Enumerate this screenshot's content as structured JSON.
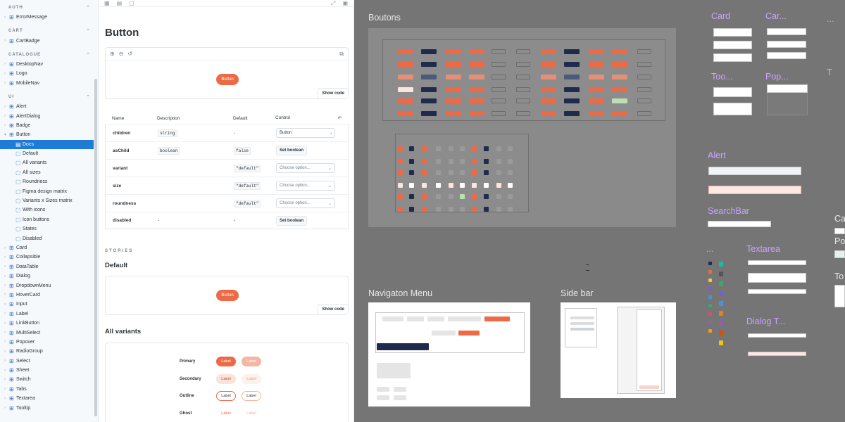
{
  "sidebar": {
    "groups": [
      {
        "title": "AUTH",
        "items": [
          {
            "label": "ErrorMessage"
          }
        ]
      },
      {
        "title": "CART",
        "items": [
          {
            "label": "CartBadge"
          }
        ]
      },
      {
        "title": "CATALOGUE",
        "items": [
          {
            "label": "DesktopNav"
          },
          {
            "label": "Logo"
          },
          {
            "label": "MobileNav"
          }
        ]
      },
      {
        "title": "UI",
        "items": [
          {
            "label": "Alert"
          },
          {
            "label": "AlertDialog"
          },
          {
            "label": "Badge"
          },
          {
            "label": "Button",
            "expanded": true
          },
          {
            "label": "Docs",
            "sub": true,
            "selected": true,
            "icon": "doc"
          },
          {
            "label": "Default",
            "sub": true
          },
          {
            "label": "All variants",
            "sub": true
          },
          {
            "label": "All sizes",
            "sub": true
          },
          {
            "label": "Roundness",
            "sub": true
          },
          {
            "label": "Figma design matrix",
            "sub": true
          },
          {
            "label": "Variants x Sizes matrix",
            "sub": true
          },
          {
            "label": "With icons",
            "sub": true
          },
          {
            "label": "Icon buttons",
            "sub": true
          },
          {
            "label": "States",
            "sub": true
          },
          {
            "label": "Disabled",
            "sub": true
          },
          {
            "label": "Card"
          },
          {
            "label": "Collapsible"
          },
          {
            "label": "DataTable"
          },
          {
            "label": "Dialog"
          },
          {
            "label": "DropdownMenu"
          },
          {
            "label": "HoverCard"
          },
          {
            "label": "Input"
          },
          {
            "label": "Label"
          },
          {
            "label": "LinkButton"
          },
          {
            "label": "MultiSelect"
          },
          {
            "label": "Popover"
          },
          {
            "label": "RadioGroup"
          },
          {
            "label": "Select"
          },
          {
            "label": "Sheet"
          },
          {
            "label": "Switch"
          },
          {
            "label": "Tabs"
          },
          {
            "label": "Textarea"
          },
          {
            "label": "Tooltip"
          }
        ]
      }
    ]
  },
  "docs": {
    "title": "Button",
    "preview_button": "Button",
    "show_code": "Show code",
    "table": {
      "headers": {
        "name": "Name",
        "description": "Description",
        "default": "Default",
        "control": "Control"
      },
      "rows": [
        {
          "name": "children",
          "description": "string",
          "default": "-",
          "control_type": "text",
          "control": "Button"
        },
        {
          "name": "asChild",
          "description": "boolean",
          "default": "false",
          "control_type": "bool",
          "control": "Set boolean"
        },
        {
          "name": "variant",
          "description": "",
          "default": "\"default\"",
          "control_type": "select",
          "control": "Choose option..."
        },
        {
          "name": "size",
          "description": "",
          "default": "\"default\"",
          "control_type": "select",
          "control": "Choose option..."
        },
        {
          "name": "roundness",
          "description": "",
          "default": "\"default\"",
          "control_type": "select",
          "control": "Choose option..."
        },
        {
          "name": "disabled",
          "description": "-",
          "default": "-",
          "control_type": "bool",
          "control": "Set boolean"
        }
      ]
    },
    "stories_label": "STORIES",
    "default_heading": "Default",
    "default_button": "Button",
    "all_variants_heading": "All variants",
    "variants": [
      {
        "name": "Primary",
        "label": "Label"
      },
      {
        "name": "Secondary",
        "label": "Label"
      },
      {
        "name": "Outline",
        "label": "Label"
      },
      {
        "name": "Ghost",
        "label": "Label"
      }
    ]
  },
  "canvas": {
    "frames": {
      "boutons": "Boutons",
      "navigation": "Navigaton Menu",
      "sidebar": "Side bar",
      "card": "Card",
      "card2": "Car...",
      "tooltip": "Too...",
      "popover": "Pop...",
      "alert": "Alert",
      "searchbar": "SearchBar",
      "textarea": "Textarea",
      "dialog": "Dialog T...",
      "dots": "...",
      "t_partial": "T",
      "ca_partial": "Ca",
      "po_partial": "Po",
      "to_partial": "To"
    }
  },
  "colors": {
    "accent": "#ee6a46",
    "navy": "#1f2b4d",
    "selection": "#1e7bd6",
    "canvas": "#757575",
    "component_purple": "#c9a4ff"
  }
}
